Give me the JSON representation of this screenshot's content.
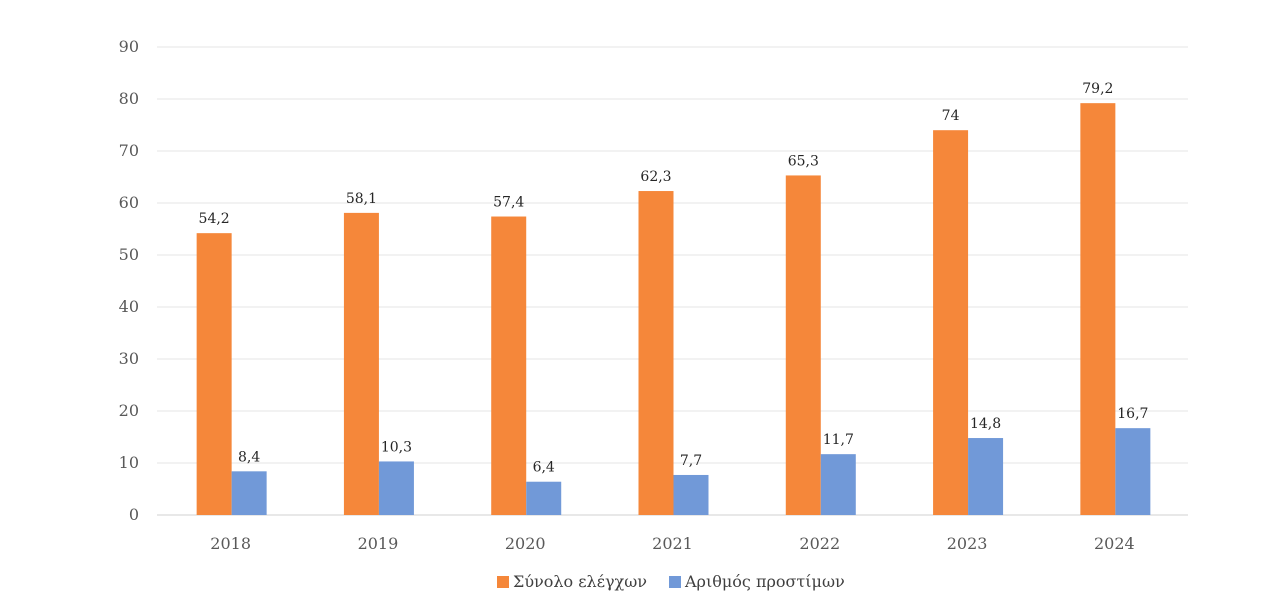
{
  "chart_data": {
    "type": "bar",
    "title": "",
    "xlabel": "",
    "ylabel": "",
    "categories": [
      "2018",
      "2019",
      "2020",
      "2021",
      "2022",
      "2023",
      "2024"
    ],
    "ylim": [
      0,
      90
    ],
    "yticks": [
      0,
      10,
      20,
      30,
      40,
      50,
      60,
      70,
      80,
      90
    ],
    "grid": true,
    "legend_position": "bottom",
    "series": [
      {
        "name": "Σύνολο ελέγχων",
        "color": "#f5873a",
        "values": [
          54.2,
          58.1,
          57.4,
          62.3,
          65.3,
          74,
          79.2
        ],
        "labels": [
          "54,2",
          "58,1",
          "57,4",
          "62,3",
          "65,3",
          "74",
          "79,2"
        ]
      },
      {
        "name": "Αριθμός προστίμων",
        "color": "#7199d8",
        "values": [
          8.4,
          10.3,
          6.4,
          7.7,
          11.7,
          14.8,
          16.7
        ],
        "labels": [
          "8,4",
          "10,3",
          "6,4",
          "7,7",
          "11,7",
          "14,8",
          "16,7"
        ]
      }
    ]
  }
}
